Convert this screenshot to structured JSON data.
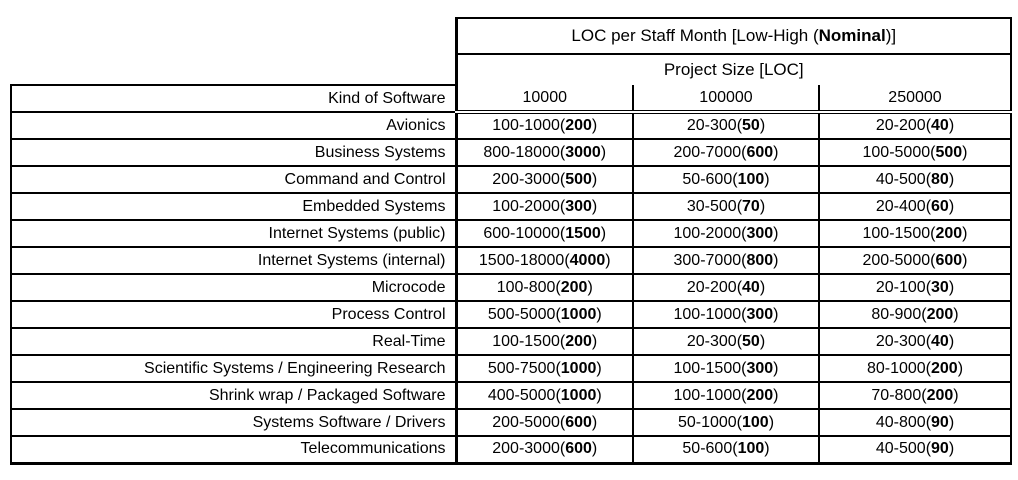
{
  "page": {
    "background_color": "#ffffff",
    "text_color": "#000000",
    "border_color": "#000000"
  },
  "table": {
    "title": {
      "pre": "LOC per Staff Month [Low-High (",
      "bold": "Nominal",
      "post": ")]"
    },
    "subtitle": "Project Size [LOC]",
    "corner_label": "Kind of Software",
    "size_columns": [
      "10000",
      "100000",
      "250000"
    ],
    "rows": [
      {
        "kind": "Avionics",
        "cells": [
          {
            "range": "100-1000",
            "nominal": "200"
          },
          {
            "range": "20-300",
            "nominal": "50"
          },
          {
            "range": "20-200",
            "nominal": "40"
          }
        ]
      },
      {
        "kind": "Business Systems",
        "cells": [
          {
            "range": "800-18000",
            "nominal": "3000"
          },
          {
            "range": "200-7000",
            "nominal": "600"
          },
          {
            "range": "100-5000",
            "nominal": "500"
          }
        ]
      },
      {
        "kind": "Command and Control",
        "cells": [
          {
            "range": "200-3000",
            "nominal": "500"
          },
          {
            "range": "50-600",
            "nominal": "100"
          },
          {
            "range": "40-500",
            "nominal": "80"
          }
        ]
      },
      {
        "kind": "Embedded Systems",
        "cells": [
          {
            "range": "100-2000",
            "nominal": "300"
          },
          {
            "range": "30-500",
            "nominal": "70"
          },
          {
            "range": "20-400",
            "nominal": "60"
          }
        ]
      },
      {
        "kind": "Internet Systems (public)",
        "cells": [
          {
            "range": "600-10000",
            "nominal": "1500"
          },
          {
            "range": "100-2000",
            "nominal": "300"
          },
          {
            "range": "100-1500",
            "nominal": "200"
          }
        ]
      },
      {
        "kind": "Internet Systems (internal)",
        "cells": [
          {
            "range": "1500-18000",
            "nominal": "4000"
          },
          {
            "range": "300-7000",
            "nominal": "800"
          },
          {
            "range": "200-5000",
            "nominal": "600"
          }
        ]
      },
      {
        "kind": "Microcode",
        "cells": [
          {
            "range": "100-800",
            "nominal": "200"
          },
          {
            "range": "20-200",
            "nominal": "40"
          },
          {
            "range": "20-100",
            "nominal": "30"
          }
        ]
      },
      {
        "kind": "Process Control",
        "cells": [
          {
            "range": "500-5000",
            "nominal": "1000"
          },
          {
            "range": "100-1000",
            "nominal": "300"
          },
          {
            "range": "80-900",
            "nominal": "200"
          }
        ]
      },
      {
        "kind": "Real-Time",
        "cells": [
          {
            "range": "100-1500",
            "nominal": "200"
          },
          {
            "range": "20-300",
            "nominal": "50"
          },
          {
            "range": "20-300",
            "nominal": "40"
          }
        ]
      },
      {
        "kind": "Scientific Systems / Engineering Research",
        "cells": [
          {
            "range": "500-7500",
            "nominal": "1000"
          },
          {
            "range": "100-1500",
            "nominal": "300"
          },
          {
            "range": "80-1000",
            "nominal": "200"
          }
        ]
      },
      {
        "kind": "Shrink wrap / Packaged Software",
        "cells": [
          {
            "range": "400-5000",
            "nominal": "1000"
          },
          {
            "range": "100-1000",
            "nominal": "200"
          },
          {
            "range": "70-800",
            "nominal": "200"
          }
        ]
      },
      {
        "kind": "Systems Software / Drivers",
        "cells": [
          {
            "range": "200-5000",
            "nominal": "600"
          },
          {
            "range": "50-1000",
            "nominal": "100"
          },
          {
            "range": "40-800",
            "nominal": "90"
          }
        ]
      },
      {
        "kind": "Telecommunications",
        "cells": [
          {
            "range": "200-3000",
            "nominal": "600"
          },
          {
            "range": "50-600",
            "nominal": "100"
          },
          {
            "range": "40-500",
            "nominal": "90"
          }
        ]
      }
    ]
  }
}
